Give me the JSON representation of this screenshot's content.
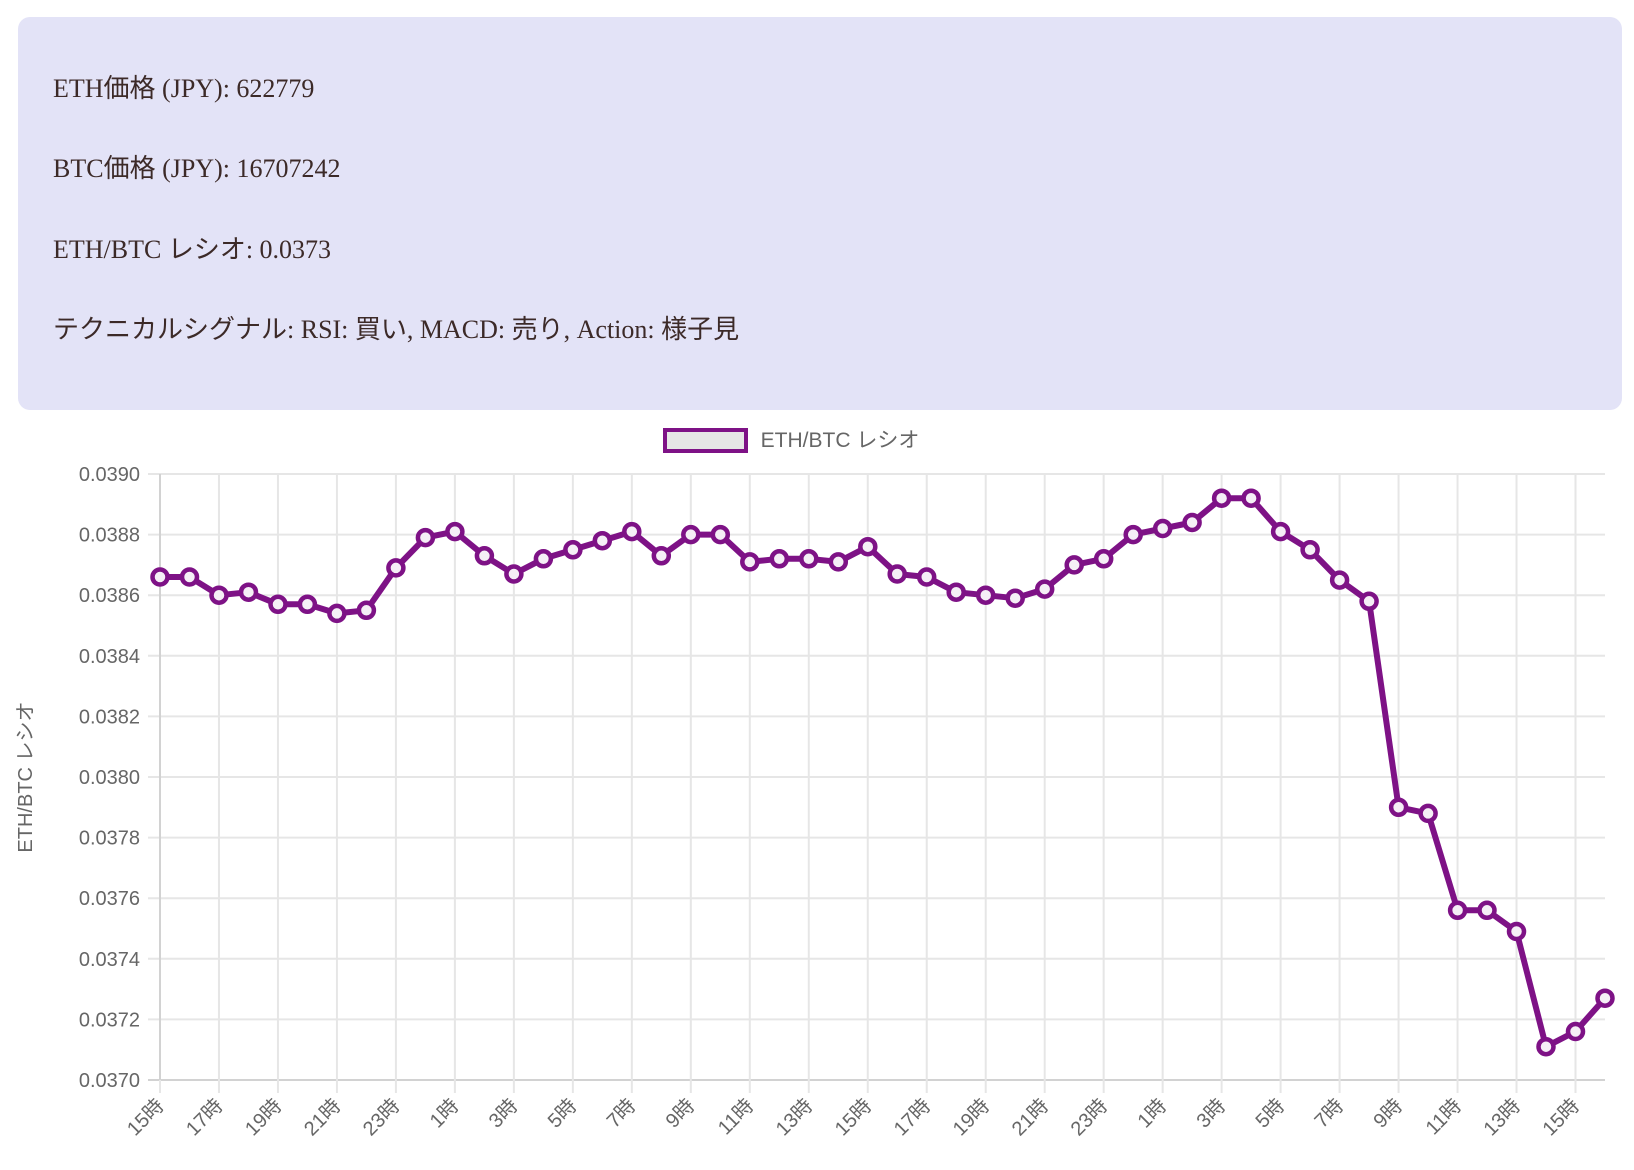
{
  "info_panel": {
    "lines": [
      "ETH価格 (JPY): 622779",
      "BTC価格 (JPY): 16707242",
      "ETH/BTC レシオ: 0.0373",
      "テクニカルシグナル: RSI: 買い, MACD: 売り, Action: 様子見"
    ],
    "eth_price_jpy": "622779",
    "btc_price_jpy": "16707242",
    "eth_btc_ratio": "0.0373",
    "signals": {
      "rsi": "買い",
      "macd": "売り",
      "action": "様子見"
    },
    "background_color": "#e3e3f7",
    "text_color": "#3c2a28"
  },
  "chart_data": {
    "type": "line",
    "title": "",
    "legend": {
      "label": "ETH/BTC レシオ",
      "position": "top"
    },
    "ylabel": "ETH/BTC レシオ",
    "ylim": [
      0.037,
      0.039
    ],
    "ytick_step": 0.0002,
    "ytick_labels": [
      "0.0370",
      "0.0372",
      "0.0374",
      "0.0376",
      "0.0378",
      "0.0380",
      "0.0382",
      "0.0384",
      "0.0386",
      "0.0388",
      "0.0390"
    ],
    "x_tick_labels": [
      "15時",
      "17時",
      "19時",
      "21時",
      "23時",
      "1時",
      "3時",
      "5時",
      "7時",
      "9時",
      "11時",
      "13時",
      "15時",
      "17時",
      "19時",
      "21時",
      "23時",
      "1時",
      "3時",
      "5時",
      "7時",
      "9時",
      "11時",
      "13時",
      "15時"
    ],
    "label_every": 2,
    "grid": true,
    "series": [
      {
        "name": "ETH/BTC レシオ",
        "values": [
          0.03866,
          0.03866,
          0.0386,
          0.03861,
          0.03857,
          0.03857,
          0.03854,
          0.03855,
          0.03869,
          0.03879,
          0.03881,
          0.03873,
          0.03867,
          0.03872,
          0.03875,
          0.03878,
          0.03881,
          0.03873,
          0.0388,
          0.0388,
          0.03871,
          0.03872,
          0.03872,
          0.03871,
          0.03876,
          0.03867,
          0.03866,
          0.03861,
          0.0386,
          0.03859,
          0.03862,
          0.0387,
          0.03872,
          0.0388,
          0.03882,
          0.03884,
          0.03892,
          0.03892,
          0.03881,
          0.03875,
          0.03865,
          0.03858,
          0.0379,
          0.03788,
          0.03756,
          0.03756,
          0.03749,
          0.03711,
          0.03716,
          0.03727
        ]
      }
    ],
    "colors": {
      "line": "#7e1286",
      "point_fill": "#f5eff6",
      "legend_box_fill": "#e6e6e6",
      "grid": "#e6e6e6",
      "axis_edge": "#d2d2d2",
      "axis_text": "#666666"
    }
  }
}
